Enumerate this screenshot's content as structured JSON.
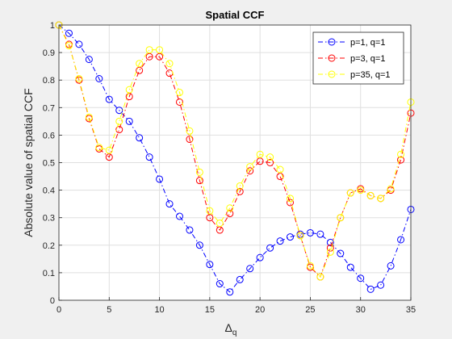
{
  "chart_data": {
    "type": "line",
    "title": "Spatial CCF",
    "xlabel": "Δ",
    "xlabel_sub": "q",
    "ylabel": "Absolute value of spatial CCF",
    "xlim": [
      0,
      35
    ],
    "ylim": [
      0,
      1
    ],
    "xticks": [
      0,
      5,
      10,
      15,
      20,
      25,
      30,
      35
    ],
    "yticks": [
      0,
      0.1,
      0.2,
      0.3,
      0.4,
      0.5,
      0.6,
      0.7,
      0.8,
      0.9,
      1
    ],
    "grid": true,
    "legend_position": "top-right",
    "x": [
      0,
      1,
      2,
      3,
      4,
      5,
      6,
      7,
      8,
      9,
      10,
      11,
      12,
      13,
      14,
      15,
      16,
      17,
      18,
      19,
      20,
      21,
      22,
      23,
      24,
      25,
      26,
      27,
      28,
      29,
      30,
      31,
      32,
      33,
      34,
      35
    ],
    "series": [
      {
        "name": "p=1, q=1",
        "color": "#0000ff",
        "values": [
          1.0,
          0.97,
          0.93,
          0.875,
          0.805,
          0.73,
          0.69,
          0.65,
          0.59,
          0.52,
          0.44,
          0.35,
          0.305,
          0.255,
          0.2,
          0.13,
          0.06,
          0.03,
          0.075,
          0.115,
          0.155,
          0.19,
          0.215,
          0.23,
          0.24,
          0.245,
          0.24,
          0.21,
          0.17,
          0.12,
          0.08,
          0.04,
          0.055,
          0.125,
          0.22,
          0.33
        ]
      },
      {
        "name": "p=3, q=1",
        "color": "#ff0000",
        "values": [
          1.0,
          0.93,
          0.8,
          0.66,
          0.55,
          0.52,
          0.62,
          0.74,
          0.835,
          0.885,
          0.885,
          0.825,
          0.72,
          0.585,
          0.435,
          0.3,
          0.255,
          0.315,
          0.395,
          0.47,
          0.505,
          0.5,
          0.45,
          0.355,
          0.235,
          0.12,
          0.085,
          0.19,
          0.3,
          0.39,
          0.405,
          0.38,
          0.37,
          0.4,
          0.51,
          0.68
        ]
      },
      {
        "name": "p=35, q=1",
        "color": "#ffff00",
        "values": [
          1.0,
          0.925,
          0.805,
          0.665,
          0.555,
          0.545,
          0.65,
          0.765,
          0.86,
          0.91,
          0.91,
          0.86,
          0.755,
          0.615,
          0.465,
          0.325,
          0.28,
          0.335,
          0.415,
          0.485,
          0.53,
          0.52,
          0.475,
          0.37,
          0.235,
          0.125,
          0.085,
          0.175,
          0.3,
          0.39,
          0.4,
          0.38,
          0.37,
          0.405,
          0.53,
          0.72
        ]
      }
    ]
  }
}
